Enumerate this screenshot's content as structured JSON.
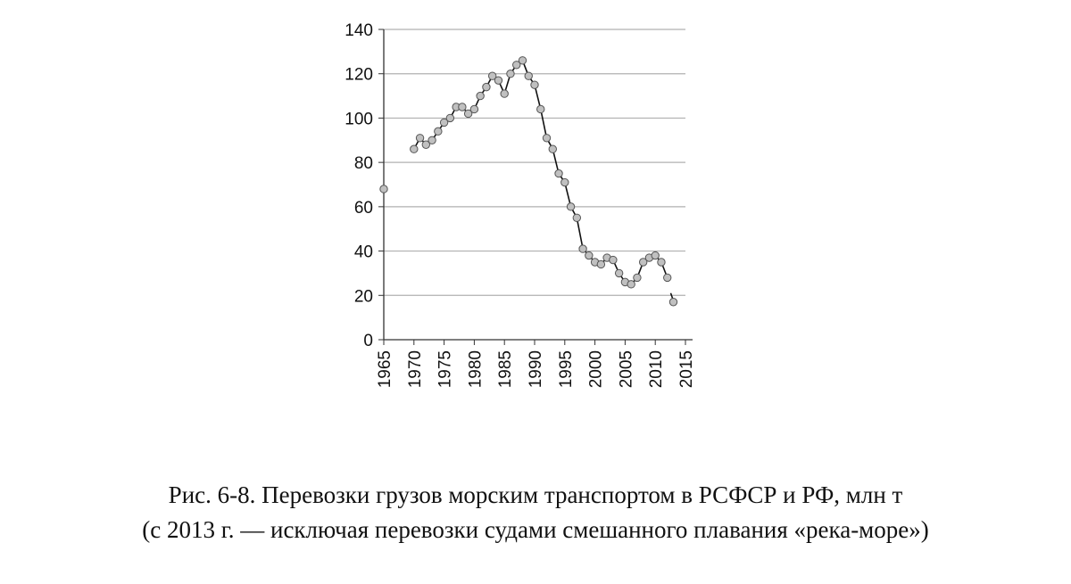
{
  "caption": {
    "line1": "Рис. 6-8. Перевозки грузов морским транспортом в РСФСР и РФ, млн т",
    "line2": "(с 2013 г. — исключая перевозки судами смешанного плавания «река-море»)"
  },
  "chart_data": {
    "type": "line",
    "title": "",
    "xlabel": "",
    "ylabel": "",
    "xlim": [
      1965,
      2015
    ],
    "ylim": [
      0,
      140
    ],
    "x_ticks": [
      "1965",
      "1970",
      "1975",
      "1980",
      "1985",
      "1990",
      "1995",
      "2000",
      "2005",
      "2010",
      "2015"
    ],
    "y_ticks": [
      "0",
      "20",
      "40",
      "60",
      "80",
      "100",
      "120",
      "140"
    ],
    "grid": "horizontal",
    "colors": {
      "line": "#111111",
      "marker_fill": "#c0c0c0",
      "marker_stroke": "#555555",
      "grid": "#b0b0b0"
    },
    "series": [
      {
        "segment": "1965",
        "points": [
          [
            1965,
            68
          ]
        ]
      },
      {
        "segment": "1970-2012",
        "points": [
          [
            1970,
            86
          ],
          [
            1971,
            91
          ],
          [
            1972,
            88
          ],
          [
            1973,
            90
          ],
          [
            1974,
            94
          ],
          [
            1975,
            98
          ],
          [
            1976,
            100
          ],
          [
            1977,
            105
          ],
          [
            1978,
            105
          ],
          [
            1979,
            102
          ],
          [
            1980,
            104
          ],
          [
            1981,
            110
          ],
          [
            1982,
            114
          ],
          [
            1983,
            119
          ],
          [
            1984,
            117
          ],
          [
            1985,
            111
          ],
          [
            1986,
            120
          ],
          [
            1987,
            124
          ],
          [
            1988,
            126
          ],
          [
            1989,
            119
          ],
          [
            1990,
            115
          ],
          [
            1991,
            104
          ],
          [
            1992,
            91
          ],
          [
            1993,
            86
          ],
          [
            1994,
            75
          ],
          [
            1995,
            71
          ],
          [
            1996,
            60
          ],
          [
            1997,
            55
          ],
          [
            1998,
            41
          ],
          [
            1999,
            38
          ],
          [
            2000,
            35
          ],
          [
            2001,
            34
          ],
          [
            2002,
            37
          ],
          [
            2003,
            36
          ],
          [
            2004,
            30
          ],
          [
            2005,
            26
          ],
          [
            2006,
            25
          ],
          [
            2007,
            28
          ],
          [
            2008,
            35
          ],
          [
            2009,
            37
          ],
          [
            2010,
            38
          ],
          [
            2011,
            35
          ],
          [
            2012,
            28
          ]
        ]
      },
      {
        "segment": "2013",
        "points": [
          [
            2013,
            17
          ]
        ]
      }
    ]
  }
}
